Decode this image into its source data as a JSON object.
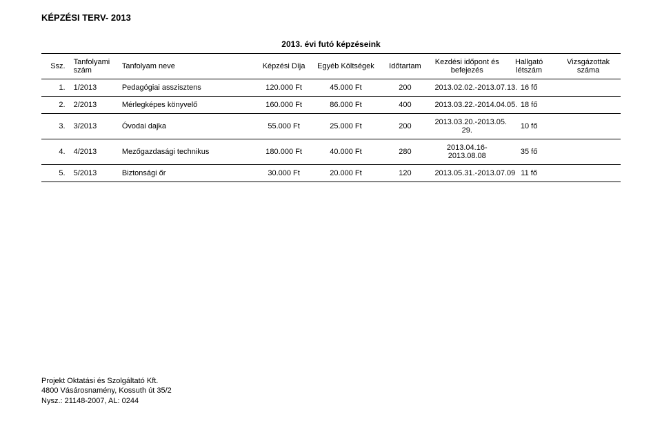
{
  "doc_title": "KÉPZÉSI TERV- 2013",
  "table_title": "2013. évi futó képzéseink",
  "headers": {
    "ssz": "Ssz.",
    "num": "Tanfolyami szám",
    "name": "Tanfolyam neve",
    "dij": "Képzési Díja",
    "egyeb": "Egyéb Költségek",
    "ido": "Időtartam",
    "kezd": "Kezdési időpont és befejezés",
    "hall": "Hallgató létszám",
    "vizs": "Vizsgázottak száma"
  },
  "rows": [
    {
      "ssz": "1.",
      "num": "1/2013",
      "name": "Pedagógiai asszisztens",
      "dij": "120.000 Ft",
      "egyeb": "45.000 Ft",
      "ido": "200",
      "kezd": "2013.02.02.-2013.07.13.",
      "hall": "16 fő",
      "vizs": ""
    },
    {
      "ssz": "2.",
      "num": "2/2013",
      "name": "Mérlegképes könyvelő",
      "dij": "160.000 Ft",
      "egyeb": "86.000 Ft",
      "ido": "400",
      "kezd": "2013.03.22.-2014.04.05.",
      "hall": "18 fő",
      "vizs": ""
    },
    {
      "ssz": "3.",
      "num": "3/2013",
      "name": "Óvodai dajka",
      "dij": "55.000 Ft",
      "egyeb": "25.000 Ft",
      "ido": "200",
      "kezd": "2013.03.20.-2013.05. 29.",
      "hall": "10 fő",
      "vizs": ""
    },
    {
      "ssz": "4.",
      "num": "4/2013",
      "name": "Mezőgazdasági technikus",
      "dij": "180.000 Ft",
      "egyeb": "40.000 Ft",
      "ido": "280",
      "kezd": "2013.04.16-2013.08.08",
      "hall": "35 fő",
      "vizs": ""
    },
    {
      "ssz": "5.",
      "num": "5/2013",
      "name": "Biztonsági őr",
      "dij": "30.000 Ft",
      "egyeb": "20.000 Ft",
      "ido": "120",
      "kezd": "2013.05.31.-2013.07.09",
      "hall": "11 fő",
      "vizs": ""
    }
  ],
  "footer": {
    "line1": "Projekt Oktatási és Szolgáltató Kft.",
    "line2": "4800 Vásárosnamény, Kossuth út 35/2",
    "line3": "Nysz.: 21148-2007, AL: 0244"
  },
  "style": {
    "background_color": "#ffffff",
    "text_color": "#000000",
    "border_color": "#000000",
    "title_fontsize": 13,
    "header_fontsize": 11,
    "cell_fontsize": 11,
    "footer_fontsize": 11,
    "col_widths_pct": {
      "ssz": 4,
      "num": 8,
      "name": 24,
      "dij": 10,
      "egyeb": 11,
      "ido": 9,
      "kezd": 12,
      "hall": 9,
      "vizs": 11
    }
  }
}
